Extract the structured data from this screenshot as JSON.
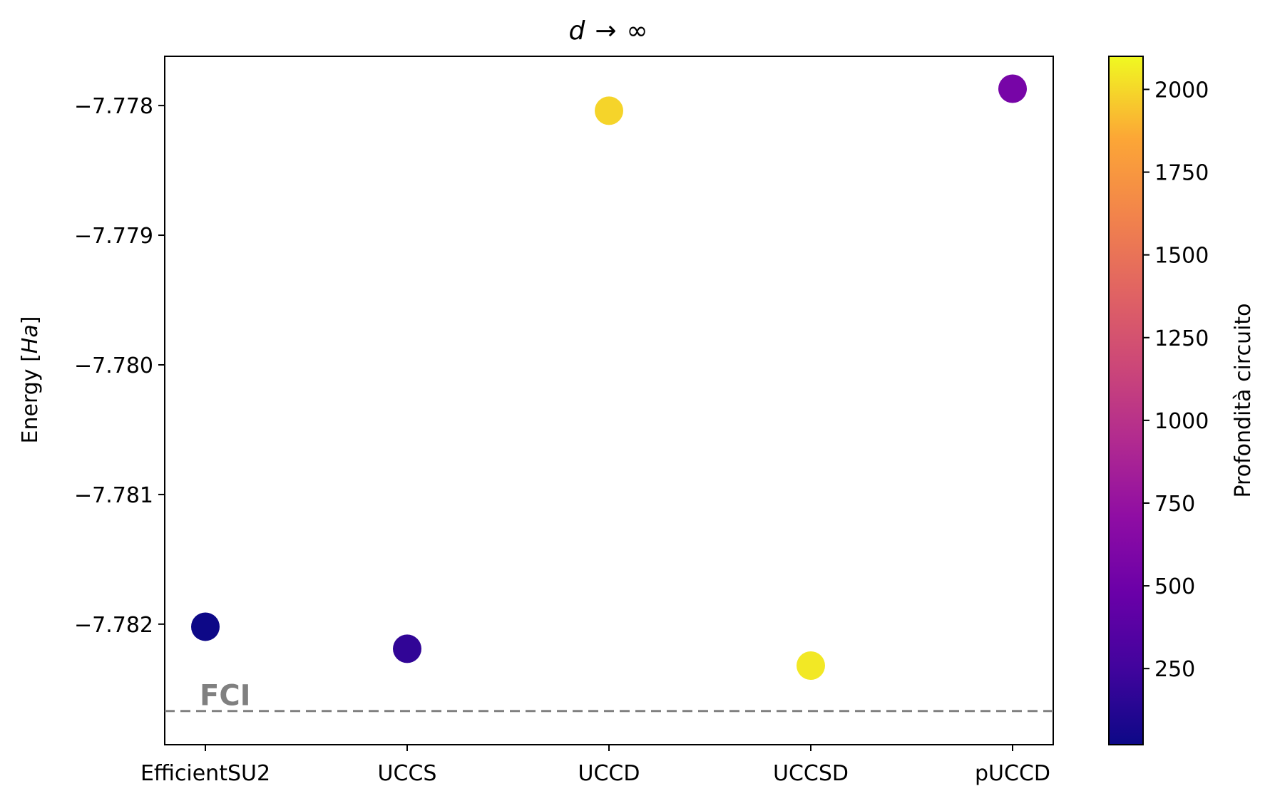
{
  "chart_data": {
    "type": "scatter",
    "title": {
      "var": "d",
      "arrow": "→",
      "inf": "∞"
    },
    "ylabel": {
      "prefix": "Energy [",
      "unit": "Ha",
      "suffix": "]"
    },
    "xlabel": "",
    "categories": [
      "EfficientSU2",
      "UCCS",
      "UCCD",
      "UCCSD",
      "pUCCD"
    ],
    "values": [
      -7.78202,
      -7.78219,
      -7.77804,
      -7.78232,
      -7.77787
    ],
    "depth": [
      20,
      180,
      1990,
      2050,
      560
    ],
    "ylim": [
      -7.78293,
      -7.77762
    ],
    "yticks": [
      -7.782,
      -7.781,
      -7.78,
      -7.779,
      -7.778
    ],
    "ytick_labels": [
      "−7.782",
      "−7.781",
      "−7.780",
      "−7.779",
      "−7.778"
    ],
    "reference_line": {
      "label": "FCI",
      "value": -7.78267,
      "color": "#808080",
      "style": "dashed"
    },
    "colorbar": {
      "label": "Profondità circuito",
      "colormap": "plasma",
      "range": [
        20,
        2100
      ],
      "ticks": [
        250,
        500,
        750,
        1000,
        1250,
        1500,
        1750,
        2000
      ],
      "tick_labels": [
        "250",
        "500",
        "750",
        "1000",
        "1250",
        "1500",
        "1750",
        "2000"
      ]
    },
    "grid": false,
    "legend": "none"
  }
}
